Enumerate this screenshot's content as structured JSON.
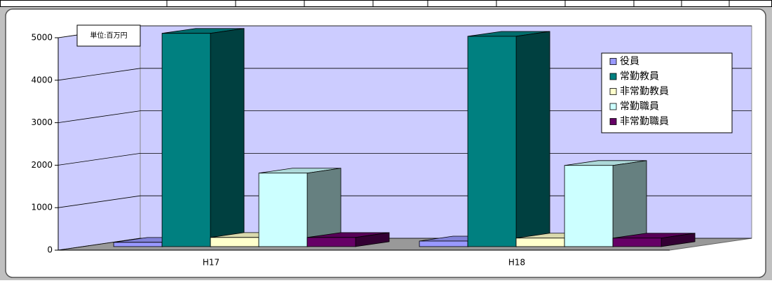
{
  "chart_data": {
    "type": "bar3d",
    "annotation": "単位:百万円",
    "categories": [
      "H17",
      "H18"
    ],
    "series": [
      {
        "name": "役員",
        "color": "#9999ff",
        "values": [
          100,
          130
        ]
      },
      {
        "name": "常勤教員",
        "color": "#008080",
        "values": [
          5020,
          4950
        ]
      },
      {
        "name": "非常勤教員",
        "color": "#ffffcc",
        "values": [
          215,
          200
        ]
      },
      {
        "name": "常勤職員",
        "color": "#ccffff",
        "values": [
          1730,
          1910
        ]
      },
      {
        "name": "非常勤職員",
        "color": "#660066",
        "values": [
          215,
          200
        ]
      }
    ],
    "ylim": [
      0,
      5000
    ],
    "yticks": [
      0,
      1000,
      2000,
      3000,
      4000,
      5000
    ],
    "grid": true,
    "legend": "right"
  }
}
